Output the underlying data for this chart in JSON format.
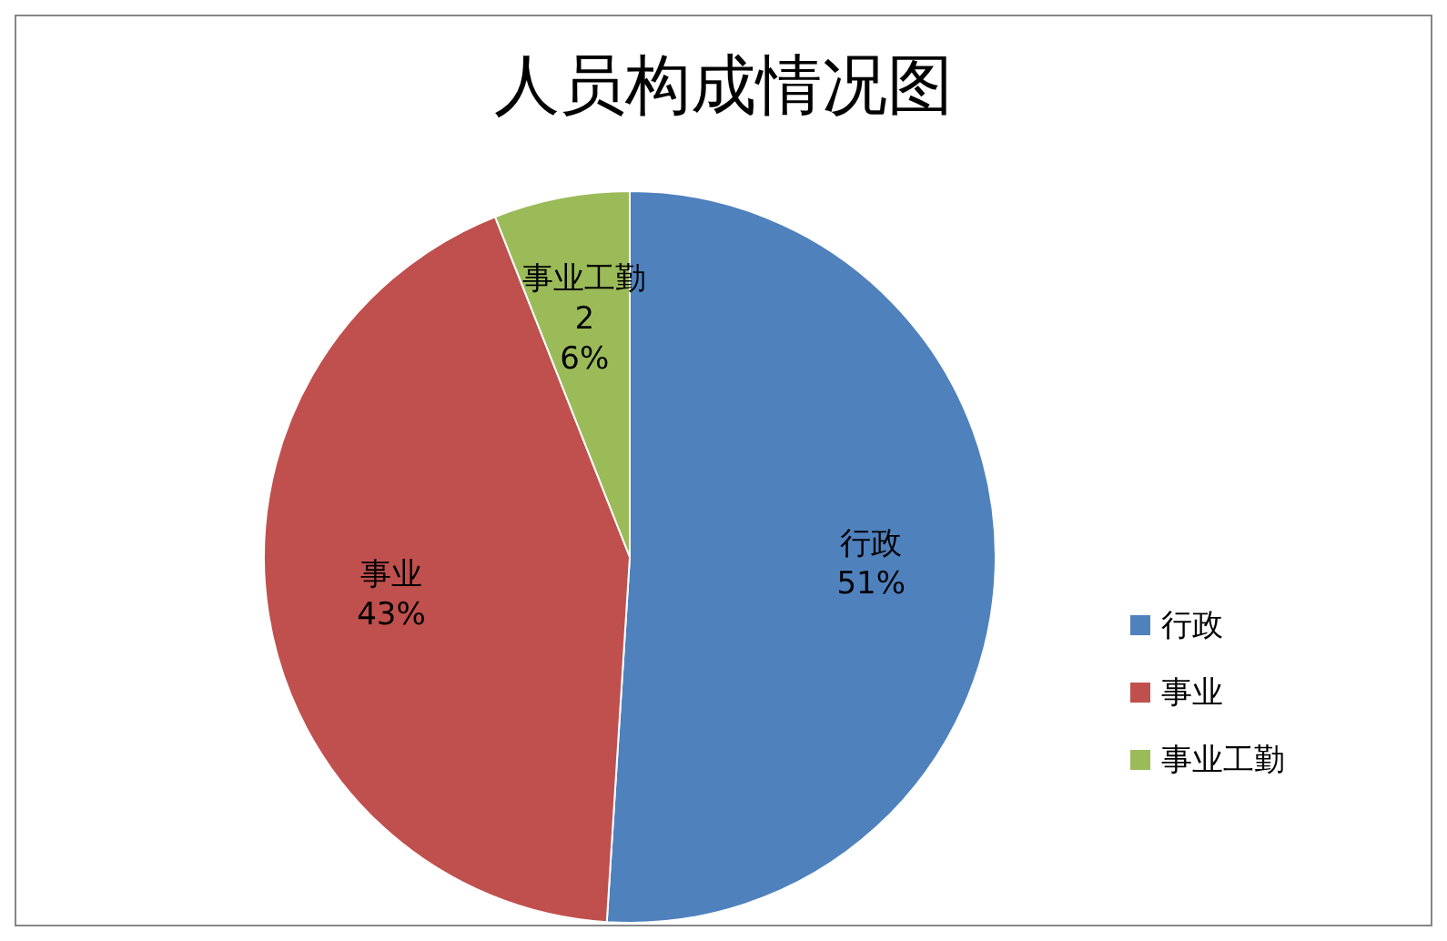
{
  "chart_data": {
    "type": "pie",
    "title": "人员构成情况图",
    "categories": [
      "行政",
      "事业",
      "事业工勤"
    ],
    "values": [
      51,
      43,
      6
    ],
    "colors": [
      "#4f81bd",
      "#c0504d",
      "#9bbb59"
    ],
    "value_labels": [
      "51%",
      "43%",
      "2\n6%"
    ],
    "legend": "right"
  }
}
